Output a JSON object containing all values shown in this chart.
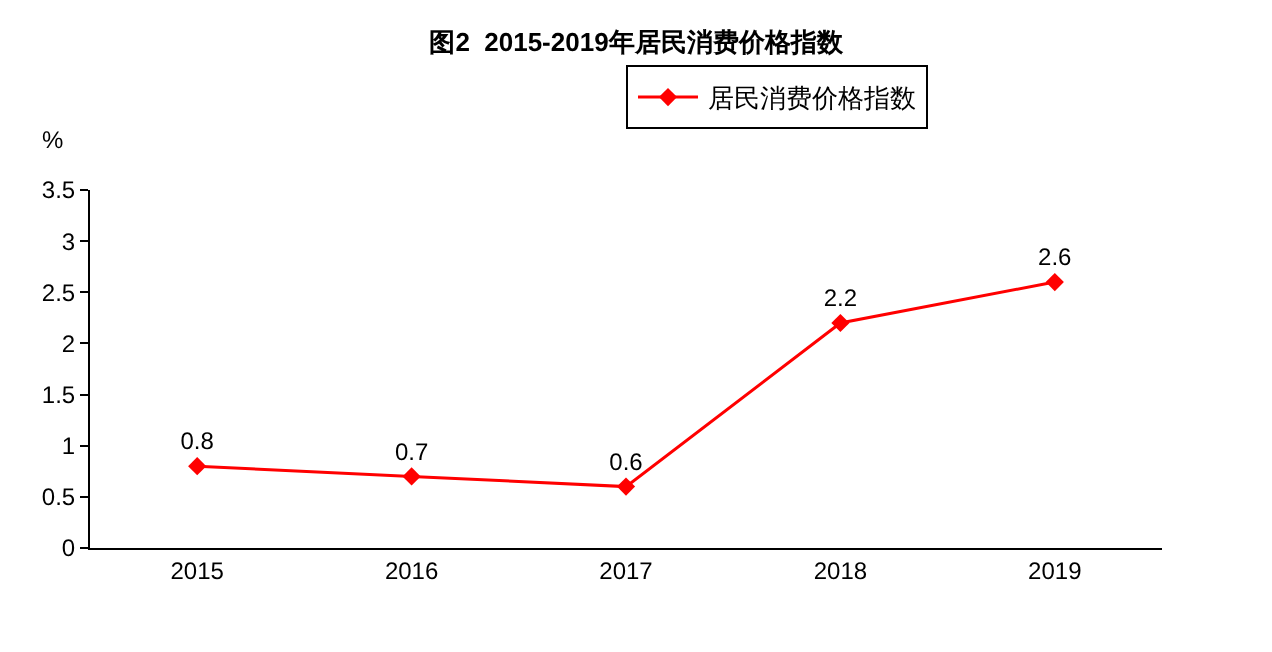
{
  "chart_data": {
    "type": "line",
    "title": "图2  2015-2019年居民消费价格指数",
    "ylabel": "%",
    "categories": [
      "2015",
      "2016",
      "2017",
      "2018",
      "2019"
    ],
    "series": [
      {
        "name": "居民消费价格指数",
        "color": "#ff0000",
        "values": [
          0.8,
          0.7,
          0.6,
          2.2,
          2.6
        ]
      }
    ],
    "ylim": [
      0,
      3.5
    ],
    "yticks": [
      0,
      0.5,
      1,
      1.5,
      2,
      2.5,
      3,
      3.5
    ],
    "grid": false,
    "legend": "top",
    "marker": "diamond",
    "line_style": "solid",
    "data_labels": true
  }
}
